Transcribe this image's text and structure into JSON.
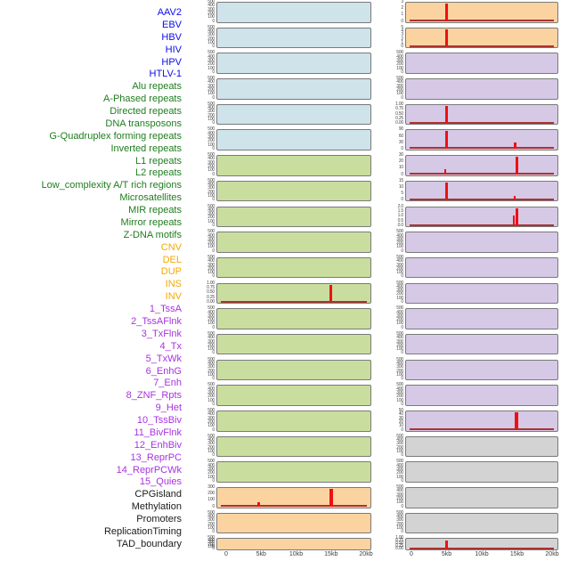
{
  "chart_data": {
    "type": "bar",
    "layout": "small-multiples-two-columns",
    "title": "",
    "x_axis": {
      "tick_labels": [
        "0",
        "5kb",
        "10kb",
        "15kb",
        "20kb"
      ],
      "tick_kb": [
        0,
        5,
        10,
        15,
        20
      ],
      "range_kb": [
        0,
        20
      ]
    },
    "group_colors": {
      "virus": "#0b0bee",
      "repeat": "#1e7d1e",
      "sv": "#f5a800",
      "chromhmm": "#a832e0",
      "other": "#1a1a1a"
    },
    "panel_colors": {
      "blue": "#cee3ea",
      "green": "#c9de9e",
      "orange": "#fbd3a1",
      "purple": "#d6c9e6",
      "gray": "#d3d3d3"
    },
    "accent_colors": {
      "spike_red": "#ee1111",
      "baseline_red": "#aa3333",
      "panel_border": "#7a7a7a"
    },
    "feature_labels": [
      {
        "text": "AAV2",
        "group": "virus"
      },
      {
        "text": "EBV",
        "group": "virus"
      },
      {
        "text": "HBV",
        "group": "virus"
      },
      {
        "text": "HIV",
        "group": "virus"
      },
      {
        "text": "HPV",
        "group": "virus"
      },
      {
        "text": "HTLV-1",
        "group": "virus"
      },
      {
        "text": "Alu repeats",
        "group": "repeat"
      },
      {
        "text": "A-Phased repeats",
        "group": "repeat"
      },
      {
        "text": "Directed repeats",
        "group": "repeat"
      },
      {
        "text": "DNA transposons",
        "group": "repeat"
      },
      {
        "text": "G-Quadruplex forming repeats",
        "group": "repeat"
      },
      {
        "text": "Inverted repeats",
        "group": "repeat"
      },
      {
        "text": "L1 repeats",
        "group": "repeat"
      },
      {
        "text": "L2 repeats",
        "group": "repeat"
      },
      {
        "text": "Low_complexity A/T rich regions",
        "group": "repeat"
      },
      {
        "text": "Microsatellites",
        "group": "repeat"
      },
      {
        "text": "MIR repeats",
        "group": "repeat"
      },
      {
        "text": "Mirror repeats",
        "group": "repeat"
      },
      {
        "text": "Z-DNA motifs",
        "group": "repeat"
      },
      {
        "text": "CNV",
        "group": "sv"
      },
      {
        "text": "DEL",
        "group": "sv"
      },
      {
        "text": "DUP",
        "group": "sv"
      },
      {
        "text": "INS",
        "group": "sv"
      },
      {
        "text": "INV",
        "group": "sv"
      },
      {
        "text": "1_TssA",
        "group": "chromhmm"
      },
      {
        "text": "2_TssAFlnk",
        "group": "chromhmm"
      },
      {
        "text": "3_TxFlnk",
        "group": "chromhmm"
      },
      {
        "text": "4_Tx",
        "group": "chromhmm"
      },
      {
        "text": "5_TxWk",
        "group": "chromhmm"
      },
      {
        "text": "6_EnhG",
        "group": "chromhmm"
      },
      {
        "text": "7_Enh",
        "group": "chromhmm"
      },
      {
        "text": "8_ZNF_Rpts",
        "group": "chromhmm"
      },
      {
        "text": "9_Het",
        "group": "chromhmm"
      },
      {
        "text": "10_TssBiv",
        "group": "chromhmm"
      },
      {
        "text": "11_BivFlnk",
        "group": "chromhmm"
      },
      {
        "text": "12_EnhBiv",
        "group": "chromhmm"
      },
      {
        "text": "13_ReprPC",
        "group": "chromhmm"
      },
      {
        "text": "14_ReprPCWk",
        "group": "chromhmm"
      },
      {
        "text": "15_Quies",
        "group": "chromhmm"
      },
      {
        "text": "CPGisland",
        "group": "other"
      },
      {
        "text": "Methylation",
        "group": "other"
      },
      {
        "text": "Promoters",
        "group": "other"
      },
      {
        "text": "ReplicationTiming",
        "group": "other"
      },
      {
        "text": "TAD_boundary",
        "group": "other"
      }
    ],
    "columns": [
      {
        "id": "left",
        "rows": [
          {
            "feature": "AAV2",
            "bg": "blue",
            "yticks": [
              "500",
              "400",
              "300",
              "200",
              "100",
              "0"
            ],
            "baseline": false,
            "spikes": []
          },
          {
            "feature": "EBV",
            "bg": "blue",
            "yticks": [
              "500",
              "400",
              "300",
              "200",
              "100",
              "0"
            ],
            "baseline": false,
            "spikes": []
          },
          {
            "feature": "HBV",
            "bg": "blue",
            "yticks": [
              "500",
              "400",
              "300",
              "200",
              "100",
              "0"
            ],
            "baseline": false,
            "spikes": []
          },
          {
            "feature": "HIV",
            "bg": "blue",
            "yticks": [
              "500",
              "400",
              "300",
              "200",
              "100",
              "0"
            ],
            "baseline": false,
            "spikes": []
          },
          {
            "feature": "HPV",
            "bg": "blue",
            "yticks": [
              "500",
              "400",
              "300",
              "200",
              "100",
              "0"
            ],
            "baseline": false,
            "spikes": []
          },
          {
            "feature": "HTLV-1",
            "bg": "blue",
            "yticks": [
              "500",
              "400",
              "300",
              "200",
              "100",
              "0"
            ],
            "baseline": false,
            "spikes": []
          },
          {
            "feature": "Alu repeats",
            "bg": "green",
            "yticks": [
              "500",
              "400",
              "300",
              "200",
              "100",
              "0"
            ],
            "baseline": false,
            "spikes": []
          },
          {
            "feature": "A-Phased repeats",
            "bg": "green",
            "yticks": [
              "500",
              "400",
              "300",
              "200",
              "100",
              "0"
            ],
            "baseline": false,
            "spikes": []
          },
          {
            "feature": "Directed repeats",
            "bg": "green",
            "yticks": [
              "500",
              "400",
              "300",
              "200",
              "100",
              "0"
            ],
            "baseline": false,
            "spikes": []
          },
          {
            "feature": "DNA transposons",
            "bg": "green",
            "yticks": [
              "500",
              "400",
              "300",
              "200",
              "100",
              "0"
            ],
            "baseline": false,
            "spikes": []
          },
          {
            "feature": "G-Quadruplex forming repeats",
            "bg": "green",
            "yticks": [
              "500",
              "400",
              "300",
              "200",
              "100",
              "0"
            ],
            "baseline": false,
            "spikes": []
          },
          {
            "feature": "Inverted repeats",
            "bg": "green",
            "yticks": [
              "1.00",
              "0.75",
              "0.50",
              "0.25",
              "0.00"
            ],
            "baseline": true,
            "spikes": [
              {
                "kb": 15,
                "h": 1.0,
                "w": 3
              }
            ]
          },
          {
            "feature": "L1 repeats",
            "bg": "green",
            "yticks": [
              "500",
              "400",
              "300",
              "200",
              "100",
              "0"
            ],
            "baseline": false,
            "spikes": []
          },
          {
            "feature": "L2 repeats",
            "bg": "green",
            "yticks": [
              "500",
              "400",
              "300",
              "200",
              "100",
              "0"
            ],
            "baseline": false,
            "spikes": []
          },
          {
            "feature": "Low_complexity A/T rich regions",
            "bg": "green",
            "yticks": [
              "500",
              "400",
              "300",
              "200",
              "100",
              "0"
            ],
            "baseline": false,
            "spikes": []
          },
          {
            "feature": "Microsatellites",
            "bg": "green",
            "yticks": [
              "500",
              "400",
              "300",
              "200",
              "100",
              "0"
            ],
            "baseline": false,
            "spikes": []
          },
          {
            "feature": "MIR repeats",
            "bg": "green",
            "yticks": [
              "500",
              "400",
              "300",
              "200",
              "100",
              "0"
            ],
            "baseline": false,
            "spikes": []
          },
          {
            "feature": "Mirror repeats",
            "bg": "green",
            "yticks": [
              "500",
              "400",
              "300",
              "200",
              "100",
              "0"
            ],
            "baseline": false,
            "spikes": []
          },
          {
            "feature": "Z-DNA motifs",
            "bg": "green",
            "yticks": [
              "500",
              "400",
              "300",
              "200",
              "100",
              "0"
            ],
            "baseline": false,
            "spikes": []
          },
          {
            "feature": "CNV",
            "bg": "orange",
            "yticks": [
              "300",
              "200",
              "100",
              "0"
            ],
            "baseline": true,
            "spikes": [
              {
                "kb": 4.6,
                "h": 0.22,
                "w": 3
              },
              {
                "kb": 15,
                "h": 1.0,
                "w": 4
              }
            ]
          },
          {
            "feature": "DEL",
            "bg": "orange",
            "yticks": [
              "500",
              "400",
              "300",
              "200",
              "100",
              "0"
            ],
            "baseline": false,
            "spikes": []
          },
          {
            "feature": "DUP",
            "bg": "orange",
            "yticks": [
              "500",
              "400",
              "300",
              "200",
              "100",
              "0"
            ],
            "baseline": false,
            "spikes": []
          }
        ]
      },
      {
        "id": "right",
        "rows": [
          {
            "feature": "INS",
            "bg": "orange",
            "yticks": [
              "3",
              "2",
              "1",
              "0"
            ],
            "baseline": true,
            "spikes": [
              {
                "kb": 5,
                "h": 1.0,
                "w": 3
              }
            ]
          },
          {
            "feature": "INV",
            "bg": "orange",
            "yticks": [
              "5",
              "4",
              "3",
              "2",
              "1",
              "0"
            ],
            "baseline": true,
            "spikes": [
              {
                "kb": 5,
                "h": 1.0,
                "w": 3
              }
            ]
          },
          {
            "feature": "1_TssA",
            "bg": "purple",
            "yticks": [
              "500",
              "400",
              "300",
              "200",
              "100",
              "0"
            ],
            "baseline": false,
            "spikes": []
          },
          {
            "feature": "2_TssAFlnk",
            "bg": "purple",
            "yticks": [
              "500",
              "400",
              "300",
              "200",
              "100",
              "0"
            ],
            "baseline": false,
            "spikes": []
          },
          {
            "feature": "3_TxFlnk",
            "bg": "purple",
            "yticks": [
              "1.00",
              "0.75",
              "0.50",
              "0.25",
              "0.00"
            ],
            "baseline": true,
            "spikes": [
              {
                "kb": 5,
                "h": 1.0,
                "w": 3
              }
            ]
          },
          {
            "feature": "4_Tx",
            "bg": "purple",
            "yticks": [
              "90",
              "60",
              "30",
              "0"
            ],
            "baseline": true,
            "spikes": [
              {
                "kb": 5,
                "h": 1.0,
                "w": 3
              },
              {
                "kb": 14.7,
                "h": 0.35,
                "w": 3
              }
            ]
          },
          {
            "feature": "5_TxWk",
            "bg": "purple",
            "yticks": [
              "30",
              "20",
              "10",
              "0"
            ],
            "baseline": true,
            "spikes": [
              {
                "kb": 4.8,
                "h": 0.27,
                "w": 2
              },
              {
                "kb": 15,
                "h": 1.0,
                "w": 3
              }
            ]
          },
          {
            "feature": "6_EnhG",
            "bg": "purple",
            "yticks": [
              "15",
              "10",
              "5",
              "0"
            ],
            "baseline": true,
            "spikes": [
              {
                "kb": 5,
                "h": 1.0,
                "w": 3
              },
              {
                "kb": 14.7,
                "h": 0.2,
                "w": 2
              }
            ]
          },
          {
            "feature": "7_Enh",
            "bg": "purple",
            "yticks": [
              "2.0",
              "1.5",
              "1.0",
              "0.5",
              "0.0"
            ],
            "baseline": true,
            "spikes": [
              {
                "kb": 14.5,
                "h": 0.55,
                "w": 2
              },
              {
                "kb": 15,
                "h": 1.0,
                "w": 3
              }
            ]
          },
          {
            "feature": "8_ZNF_Rpts",
            "bg": "purple",
            "yticks": [
              "500",
              "400",
              "300",
              "200",
              "100",
              "0"
            ],
            "baseline": false,
            "spikes": []
          },
          {
            "feature": "9_Het",
            "bg": "purple",
            "yticks": [
              "500",
              "400",
              "300",
              "200",
              "100",
              "0"
            ],
            "baseline": false,
            "spikes": []
          },
          {
            "feature": "10_TssBiv",
            "bg": "purple",
            "yticks": [
              "500",
              "400",
              "300",
              "200",
              "100",
              "0"
            ],
            "baseline": false,
            "spikes": []
          },
          {
            "feature": "11_BivFlnk",
            "bg": "purple",
            "yticks": [
              "500",
              "400",
              "300",
              "200",
              "100",
              "0"
            ],
            "baseline": false,
            "spikes": []
          },
          {
            "feature": "12_EnhBiv",
            "bg": "purple",
            "yticks": [
              "500",
              "400",
              "300",
              "200",
              "100",
              "0"
            ],
            "baseline": false,
            "spikes": []
          },
          {
            "feature": "13_ReprPC",
            "bg": "purple",
            "yticks": [
              "500",
              "400",
              "300",
              "200",
              "100",
              "0"
            ],
            "baseline": false,
            "spikes": []
          },
          {
            "feature": "14_ReprPCWk",
            "bg": "purple",
            "yticks": [
              "500",
              "400",
              "300",
              "200",
              "100",
              "0"
            ],
            "baseline": false,
            "spikes": []
          },
          {
            "feature": "15_Quies",
            "bg": "purple",
            "yticks": [
              "50",
              "40",
              "30",
              "20",
              "10",
              "0"
            ],
            "baseline": true,
            "spikes": [
              {
                "kb": 14.9,
                "h": 1.0,
                "w": 4
              }
            ]
          },
          {
            "feature": "CPGisland",
            "bg": "gray",
            "yticks": [
              "500",
              "400",
              "300",
              "200",
              "100",
              "0"
            ],
            "baseline": false,
            "spikes": []
          },
          {
            "feature": "Methylation",
            "bg": "gray",
            "yticks": [
              "500",
              "400",
              "300",
              "200",
              "100",
              "0"
            ],
            "baseline": false,
            "spikes": []
          },
          {
            "feature": "Promoters",
            "bg": "gray",
            "yticks": [
              "500",
              "400",
              "300",
              "200",
              "100",
              "0"
            ],
            "baseline": false,
            "spikes": []
          },
          {
            "feature": "ReplicationTiming",
            "bg": "gray",
            "yticks": [
              "500",
              "400",
              "300",
              "200",
              "100",
              "0"
            ],
            "baseline": false,
            "spikes": []
          },
          {
            "feature": "TAD_boundary",
            "bg": "gray",
            "yticks": [
              "1.00",
              "0.75",
              "0.50",
              "0.25",
              "0.00"
            ],
            "baseline": true,
            "spikes": [
              {
                "kb": 5,
                "h": 0.95,
                "w": 3
              }
            ]
          }
        ]
      }
    ]
  }
}
